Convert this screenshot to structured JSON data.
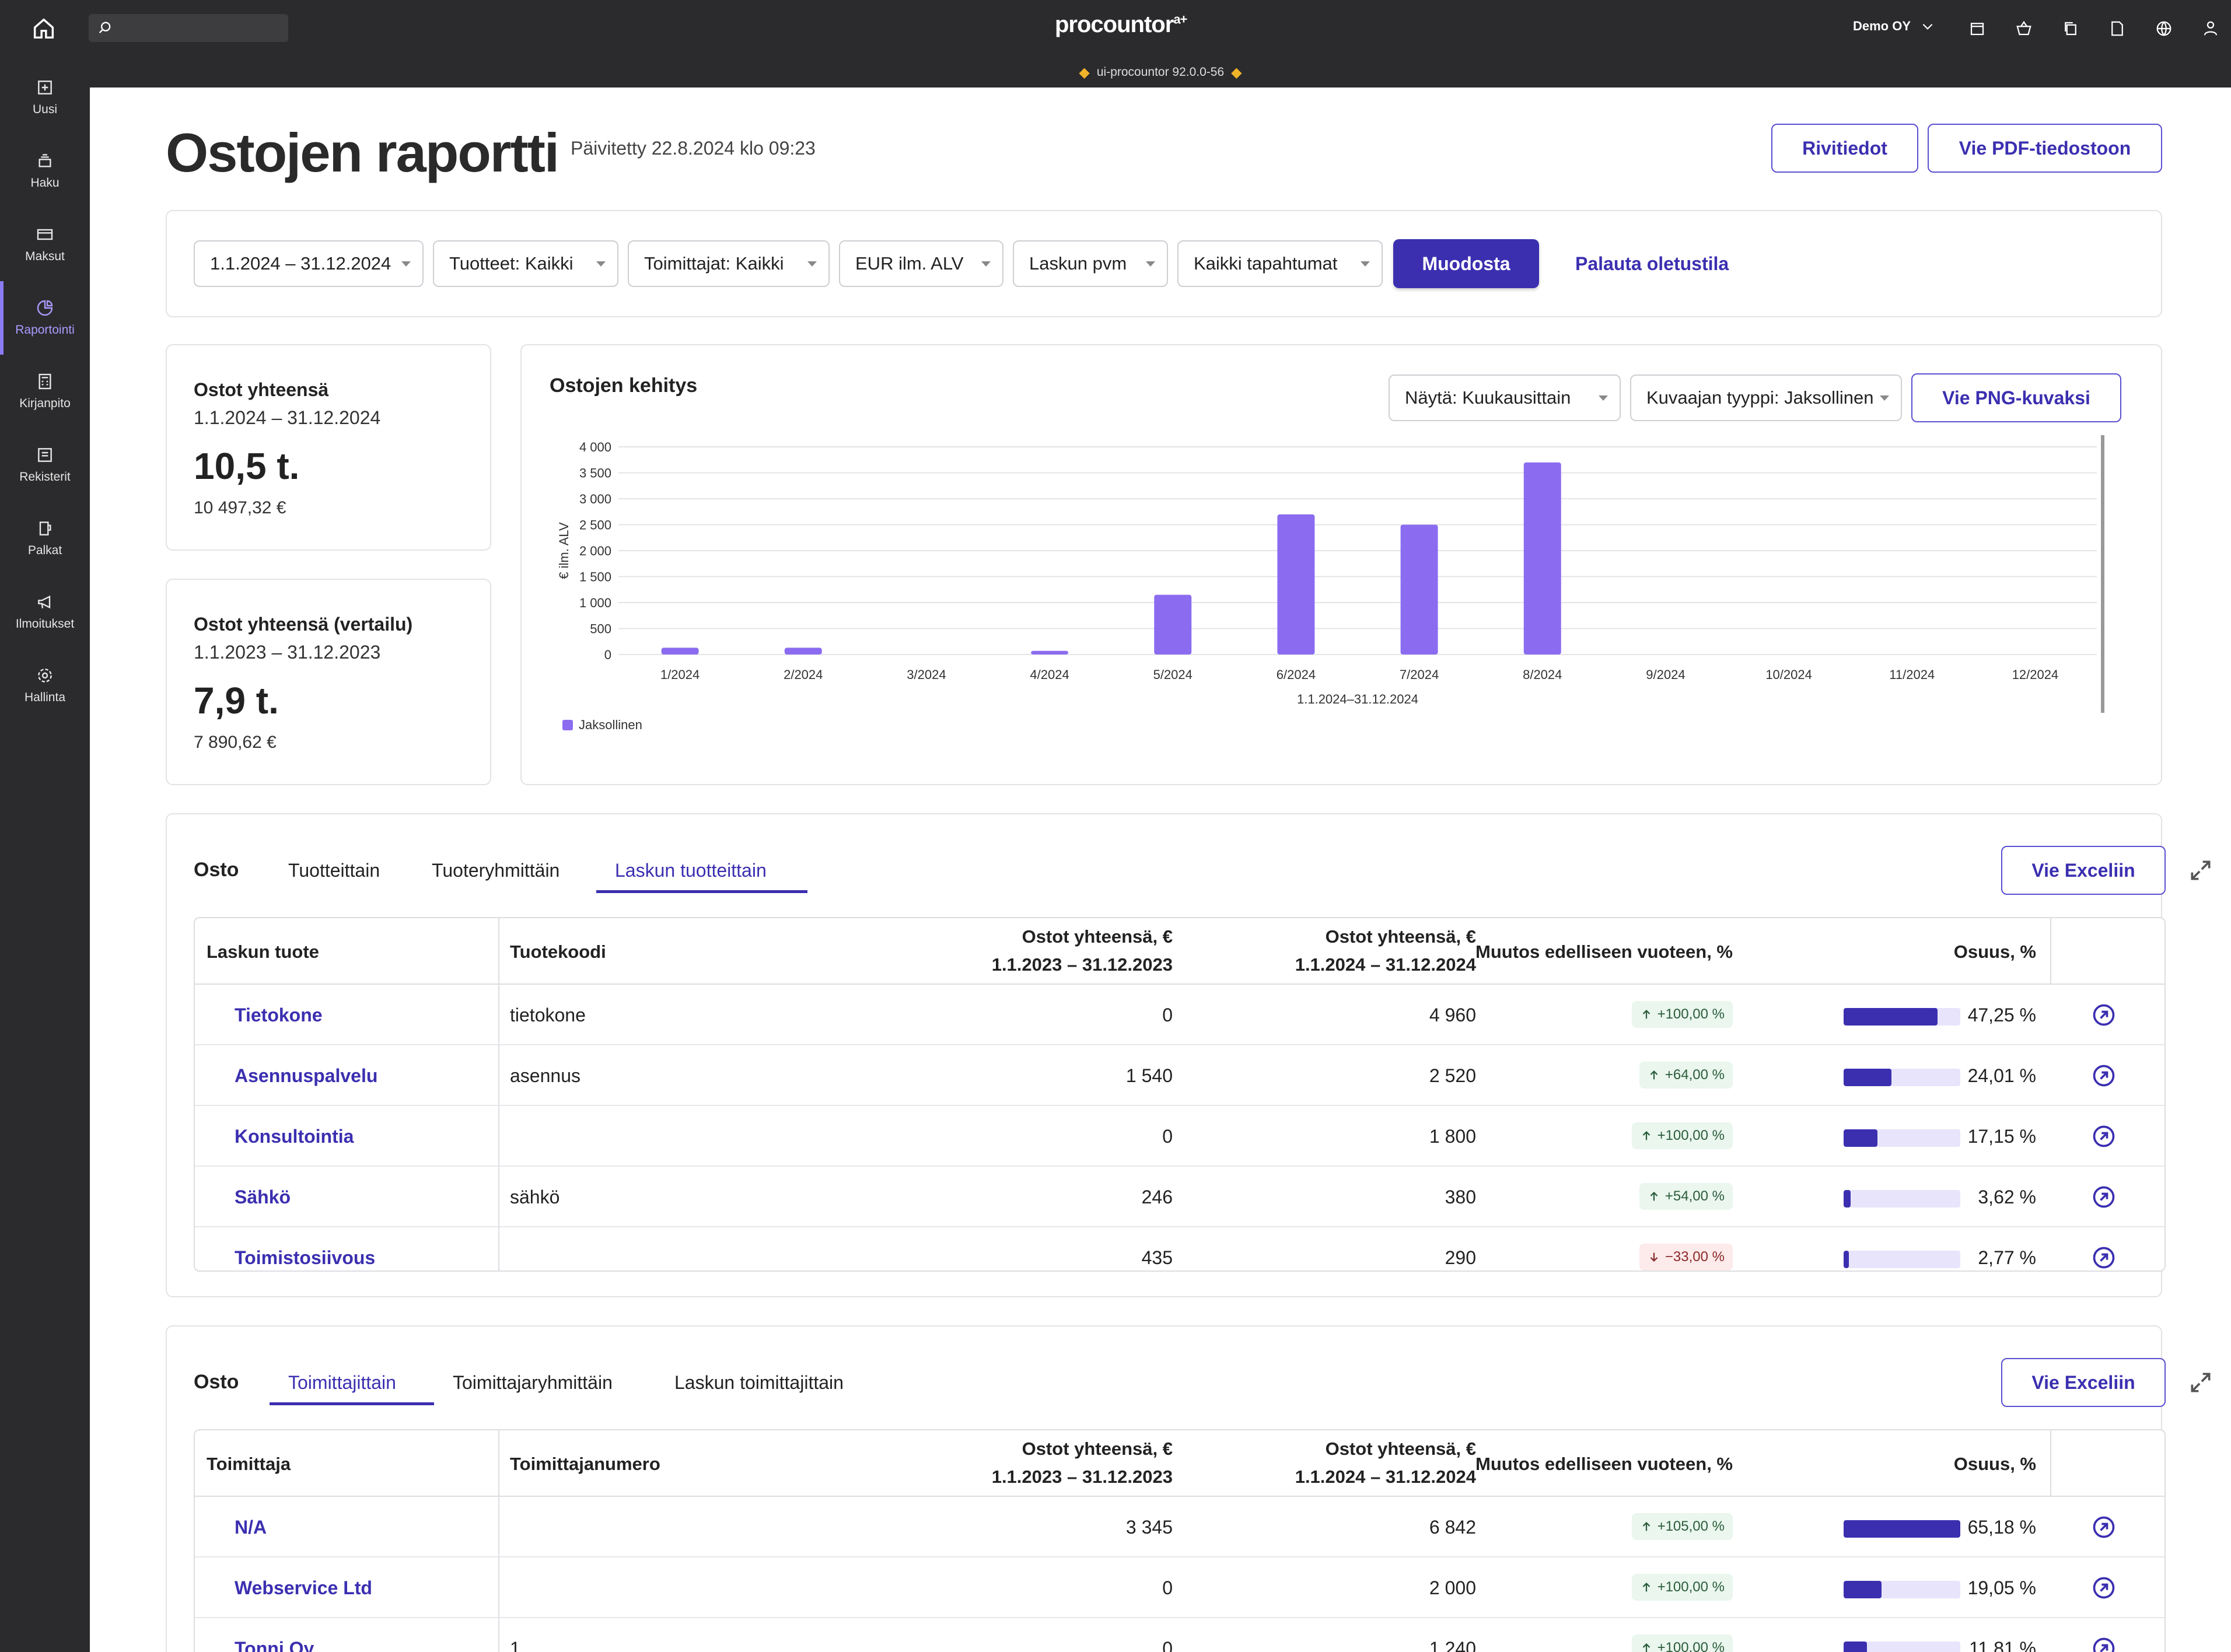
{
  "topbar": {
    "logo": "procountor",
    "logo_sup": "a+",
    "company": "Demo OY",
    "version": "ui-procountor 92.0.0-56"
  },
  "sidebar": {
    "items": [
      {
        "label": "Uusi",
        "icon": "plus-square-icon"
      },
      {
        "label": "Haku",
        "icon": "stack-icon"
      },
      {
        "label": "Maksut",
        "icon": "card-icon"
      },
      {
        "label": "Raportointi",
        "icon": "chart-icon",
        "active": true
      },
      {
        "label": "Kirjanpito",
        "icon": "calculator-icon"
      },
      {
        "label": "Rekisterit",
        "icon": "list-icon"
      },
      {
        "label": "Palkat",
        "icon": "wallet-icon"
      },
      {
        "label": "Ilmoitukset",
        "icon": "megaphone-icon"
      },
      {
        "label": "Hallinta",
        "icon": "gear-icon"
      }
    ]
  },
  "header": {
    "title": "Ostojen raportti",
    "updated": "Päivitetty 22.8.2024 klo 09:23",
    "btn_rows": "Rivitiedot",
    "btn_pdf": "Vie PDF-tiedostoon"
  },
  "filters": {
    "period": "1.1.2024 – 31.12.2024",
    "products": "Tuotteet: Kaikki",
    "suppliers": "Toimittajat: Kaikki",
    "currency": "EUR ilm. ALV",
    "date_type": "Laskun pvm",
    "events": "Kaikki tapahtumat",
    "generate": "Muodosta",
    "reset": "Palauta oletustila"
  },
  "kpi": [
    {
      "title": "Ostot yhteensä",
      "range": "1.1.2024 – 31.12.2024",
      "big": "10,5 t.",
      "sub": "10 497,32 €"
    },
    {
      "title": "Ostot yhteensä (vertailu)",
      "range": "1.1.2023 – 31.12.2023",
      "big": "7,9 t.",
      "sub": "7 890,62 €"
    }
  ],
  "chart_panel": {
    "title": "Ostojen kehitys",
    "show": "Näytä: Kuukausittain",
    "type": "Kuvaajan tyyppi: Jaksollinen",
    "export": "Vie PNG-kuvaksi"
  },
  "chart_data": {
    "type": "bar",
    "title": "",
    "ylabel": "€ ilm. ALV",
    "xlabel": "1.1.2024–31.12.2024",
    "ylim": [
      0,
      4000
    ],
    "yticks": [
      "0",
      "500",
      "1 000",
      "1 500",
      "2 000",
      "2 500",
      "3 000",
      "3 500",
      "4 000"
    ],
    "categories": [
      "1/2024",
      "2/2024",
      "3/2024",
      "4/2024",
      "5/2024",
      "6/2024",
      "7/2024",
      "8/2024",
      "9/2024",
      "10/2024",
      "11/2024",
      "12/2024"
    ],
    "series": [
      {
        "name": "Jaksollinen",
        "values": [
          130,
          130,
          0,
          70,
          1150,
          2700,
          2500,
          3700,
          0,
          0,
          0,
          0
        ]
      }
    ],
    "legend": "bottom-left",
    "color": "#8b6cf0",
    "grid": true
  },
  "table1": {
    "lead": "Osto",
    "tabs": [
      "Tuotteittain",
      "Tuoteryhmittäin",
      "Laskun tuotteittain"
    ],
    "active_tab": 2,
    "export": "Vie Exceliin",
    "headers": {
      "c1": "Laskun tuote",
      "c2": "Tuotekoodi",
      "c3a": "Ostot yhteensä, €",
      "c3b": "1.1.2023 – 31.12.2023",
      "c4a": "Ostot yhteensä, €",
      "c4b": "1.1.2024 – 31.12.2024",
      "c5": "Muutos edelliseen vuoteen, %",
      "c6": "Osuus, %"
    },
    "rows": [
      {
        "name": "Tietokone",
        "code": "tietokone",
        "prev": "0",
        "cur": "4 960",
        "change": "+100,00 %",
        "dir": "up",
        "share": "47,25 %",
        "share_value": 47.25
      },
      {
        "name": "Asennuspalvelu",
        "code": "asennus",
        "prev": "1 540",
        "cur": "2 520",
        "change": "+64,00 %",
        "dir": "up",
        "share": "24,01 %",
        "share_value": 24.01
      },
      {
        "name": "Konsultointia",
        "code": "",
        "prev": "0",
        "cur": "1 800",
        "change": "+100,00 %",
        "dir": "up",
        "share": "17,15 %",
        "share_value": 17.15
      },
      {
        "name": "Sähkö",
        "code": "sähkö",
        "prev": "246",
        "cur": "380",
        "change": "+54,00 %",
        "dir": "up",
        "share": "3,62 %",
        "share_value": 3.62
      },
      {
        "name": "Toimistosiivous",
        "code": "",
        "prev": "435",
        "cur": "290",
        "change": "−33,00 %",
        "dir": "down",
        "share": "2,77 %",
        "share_value": 2.77
      }
    ]
  },
  "table2": {
    "lead": "Osto",
    "tabs": [
      "Toimittajittain",
      "Toimittajaryhmittäin",
      "Laskun toimittajittain"
    ],
    "active_tab": 0,
    "export": "Vie Exceliin",
    "headers": {
      "c1": "Toimittaja",
      "c2": "Toimittajanumero",
      "c3a": "Ostot yhteensä, €",
      "c3b": "1.1.2023 – 31.12.2023",
      "c4a": "Ostot yhteensä, €",
      "c4b": "1.1.2024 – 31.12.2024",
      "c5": "Muutos edelliseen vuoteen, %",
      "c6": "Osuus, %"
    },
    "rows": [
      {
        "name": "N/A",
        "code": "",
        "prev": "3 345",
        "cur": "6 842",
        "change": "+105,00 %",
        "dir": "up",
        "share": "65,18 %",
        "share_value": 65.18
      },
      {
        "name": "Webservice Ltd",
        "code": "",
        "prev": "0",
        "cur": "2 000",
        "change": "+100,00 %",
        "dir": "up",
        "share": "19,05 %",
        "share_value": 19.05
      },
      {
        "name": "Tonni Oy",
        "code": "1",
        "prev": "0",
        "cur": "1 240",
        "change": "+100,00 %",
        "dir": "up",
        "share": "11,81 %",
        "share_value": 11.81
      }
    ]
  }
}
